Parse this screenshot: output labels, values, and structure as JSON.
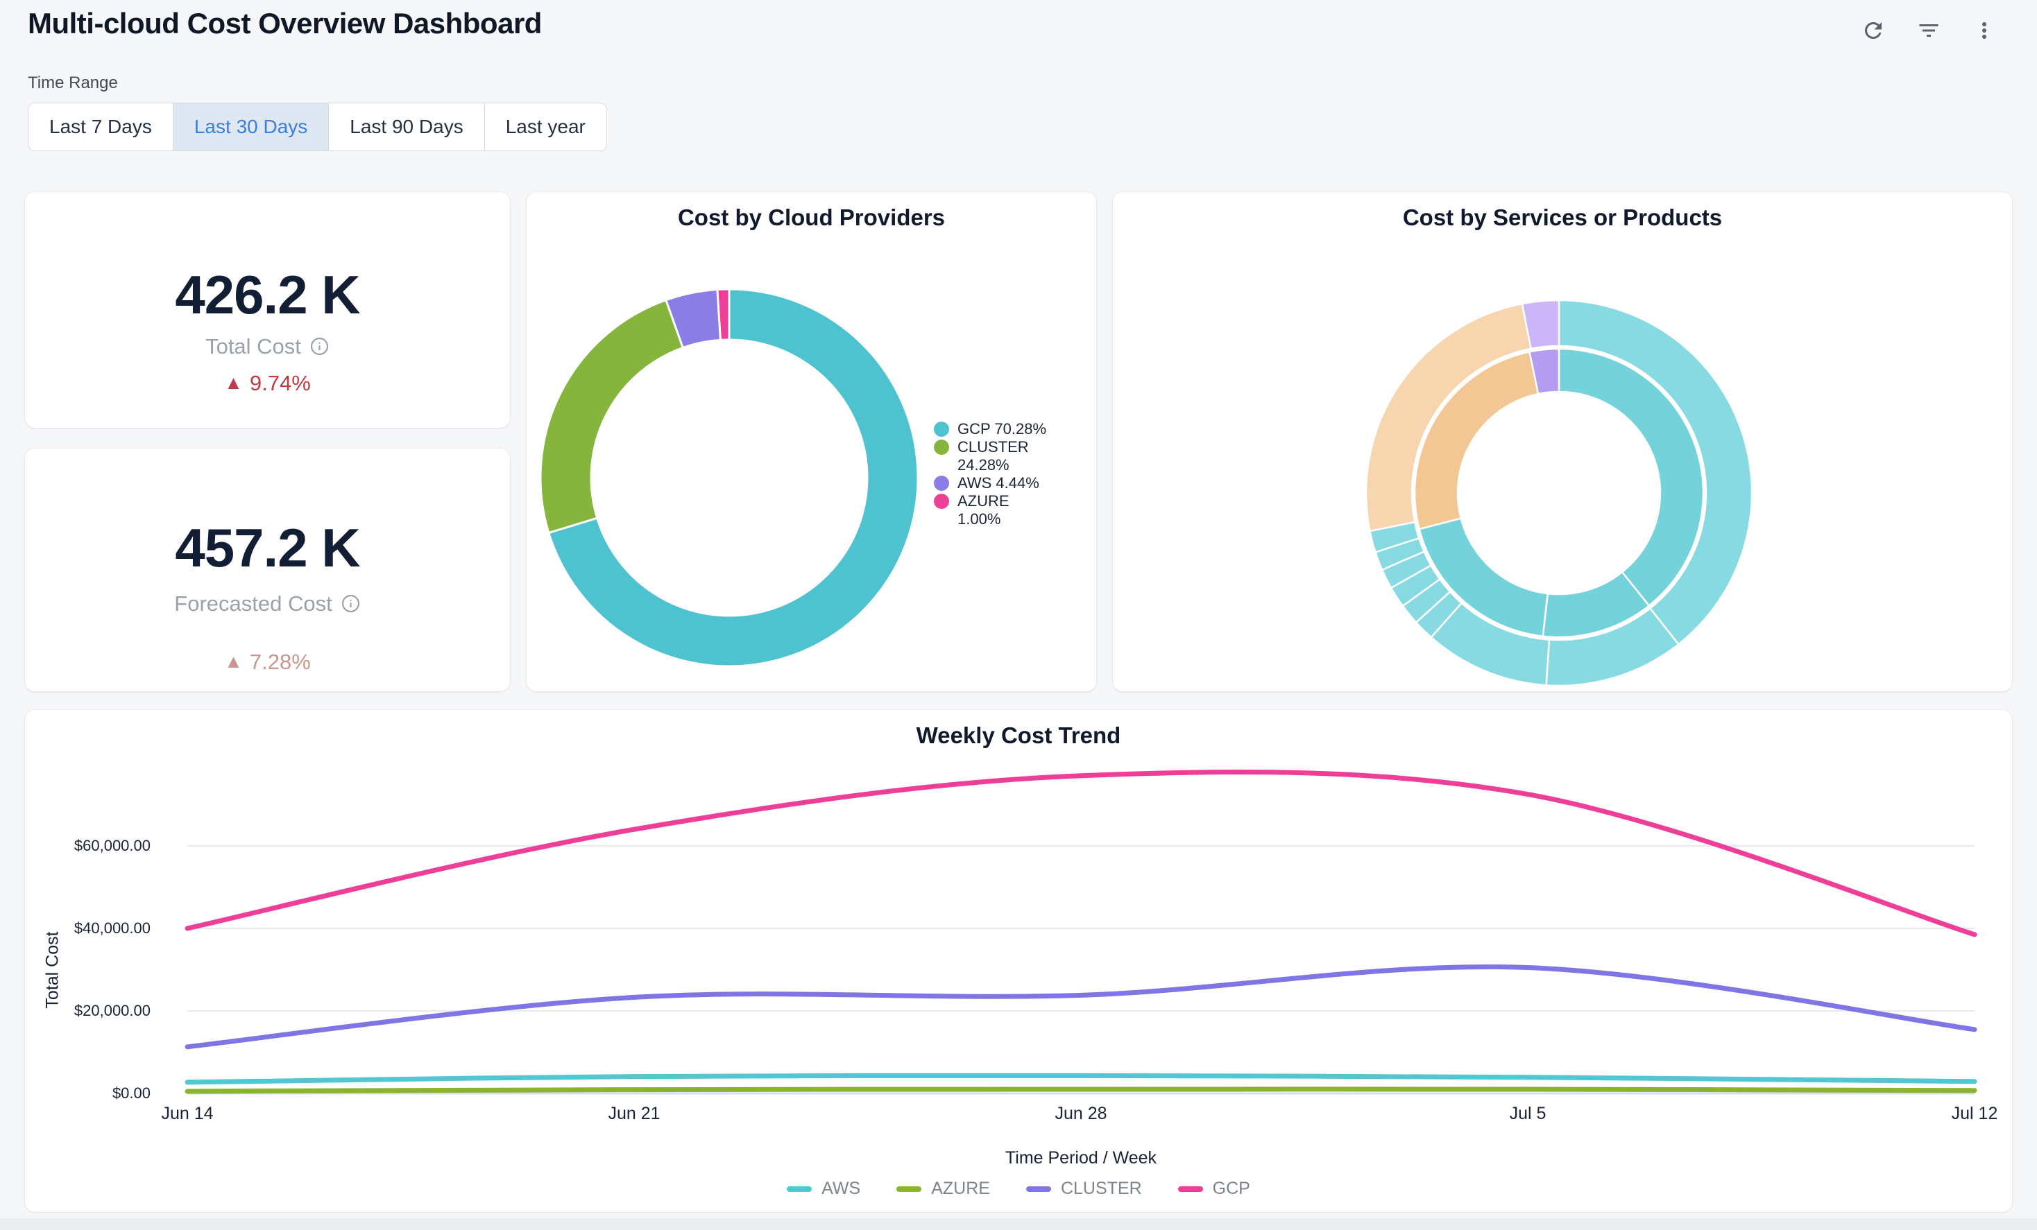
{
  "header": {
    "title": "Multi-cloud Cost Overview Dashboard",
    "actions": [
      {
        "name": "refresh"
      },
      {
        "name": "filter"
      },
      {
        "name": "more-options"
      }
    ]
  },
  "time_range": {
    "label": "Time Range",
    "selected_text_color": "#3d7fd9",
    "options": [
      {
        "label": "Last 7 Days",
        "selected": false
      },
      {
        "label": "Last 30 Days",
        "selected": true
      },
      {
        "label": "Last 90 Days",
        "selected": false
      },
      {
        "label": "Last year",
        "selected": false
      }
    ]
  },
  "kpis": [
    {
      "value": "426.2 K",
      "label": "Total Cost",
      "delta": "9.74%",
      "direction": "up",
      "delta_color": "#be3a44"
    },
    {
      "value": "457.2 K",
      "label": "Forecasted Cost",
      "delta": "7.28%",
      "direction": "up",
      "delta_color": "#c8968f"
    }
  ],
  "chart_data": [
    {
      "id": "cost-by-cloud-providers",
      "type": "pie",
      "variant": "donut",
      "title": "Cost by Cloud Providers",
      "legend_position": "right",
      "labels": [
        "GCP",
        "CLUSTER",
        "AWS",
        "AZURE"
      ],
      "values": [
        70.28,
        24.28,
        4.44,
        1.0
      ],
      "legend_labels": [
        "GCP 70.28%",
        "CLUSTER 24.28%",
        "AWS 4.44%",
        "AZURE 1.00%"
      ],
      "colors": [
        "#4ec2ce",
        "#85b53c",
        "#8a7ee6",
        "#ee4097"
      ]
    },
    {
      "id": "cost-by-services-or-products",
      "type": "pie",
      "variant": "sunburst",
      "title": "Cost by Services or Products",
      "rings": [
        {
          "name": "outer",
          "r_inner": 212,
          "r_outer": 278,
          "segments": [
            {
              "start": 0,
              "end": 141.7,
              "color": "#87dae1"
            },
            {
              "start": 141.7,
              "end": 183.8,
              "color": "#87dae1"
            },
            {
              "start": 183.8,
              "end": 221.5,
              "color": "#87dae1"
            },
            {
              "start": 221.5,
              "end": 227.8,
              "color": "#87dae1"
            },
            {
              "start": 227.8,
              "end": 234.1,
              "color": "#87dae1"
            },
            {
              "start": 234.1,
              "end": 240.5,
              "color": "#87dae1"
            },
            {
              "start": 240.5,
              "end": 246.5,
              "color": "#87dae1"
            },
            {
              "start": 246.5,
              "end": 252.1,
              "color": "#87dae1"
            },
            {
              "start": 252.1,
              "end": 258.6,
              "color": "#87dae1"
            },
            {
              "start": 258.6,
              "end": 349.0,
              "color": "#f7d5ae"
            },
            {
              "start": 349.0,
              "end": 360,
              "color": "#ccb6f7"
            }
          ]
        },
        {
          "name": "inner",
          "r_inner": 146,
          "r_outer": 208,
          "segments": [
            {
              "start": 0,
              "end": 141.4,
              "color": "#74d2da"
            },
            {
              "start": 141.4,
              "end": 186.4,
              "color": "#74d2da"
            },
            {
              "start": 186.4,
              "end": 255.5,
              "color": "#74d2da"
            },
            {
              "start": 255.5,
              "end": 348.2,
              "color": "#f3c794"
            },
            {
              "start": 348.2,
              "end": 360,
              "color": "#b49cf0"
            }
          ]
        }
      ]
    },
    {
      "id": "weekly-cost-trend",
      "type": "line",
      "title": "Weekly Cost Trend",
      "xlabel": "Time Period / Week",
      "ylabel": "Total Cost",
      "x": [
        "Jun 14",
        "Jun 21",
        "Jun 28",
        "Jul 5",
        "Jul 12"
      ],
      "yticks": [
        {
          "value": 0,
          "label": "$0.00"
        },
        {
          "value": 20000,
          "label": "$20,000.00"
        },
        {
          "value": 40000,
          "label": "$40,000.00"
        },
        {
          "value": 60000,
          "label": "$60,000.00"
        }
      ],
      "ylim": [
        0,
        88000
      ],
      "grid": true,
      "smooth": true,
      "legend_position": "bottom",
      "series": [
        {
          "name": "AWS",
          "color": "#52c7d2",
          "values": [
            2700,
            4100,
            4300,
            3900,
            2900
          ]
        },
        {
          "name": "AZURE",
          "color": "#8bb42d",
          "values": [
            500,
            900,
            1000,
            1000,
            700
          ]
        },
        {
          "name": "CLUSTER",
          "color": "#7f75e4",
          "values": [
            11300,
            23300,
            23800,
            30500,
            15500
          ]
        },
        {
          "name": "GCP",
          "color": "#ee3e97",
          "values": [
            40000,
            64000,
            77000,
            72500,
            38500
          ]
        }
      ]
    }
  ]
}
